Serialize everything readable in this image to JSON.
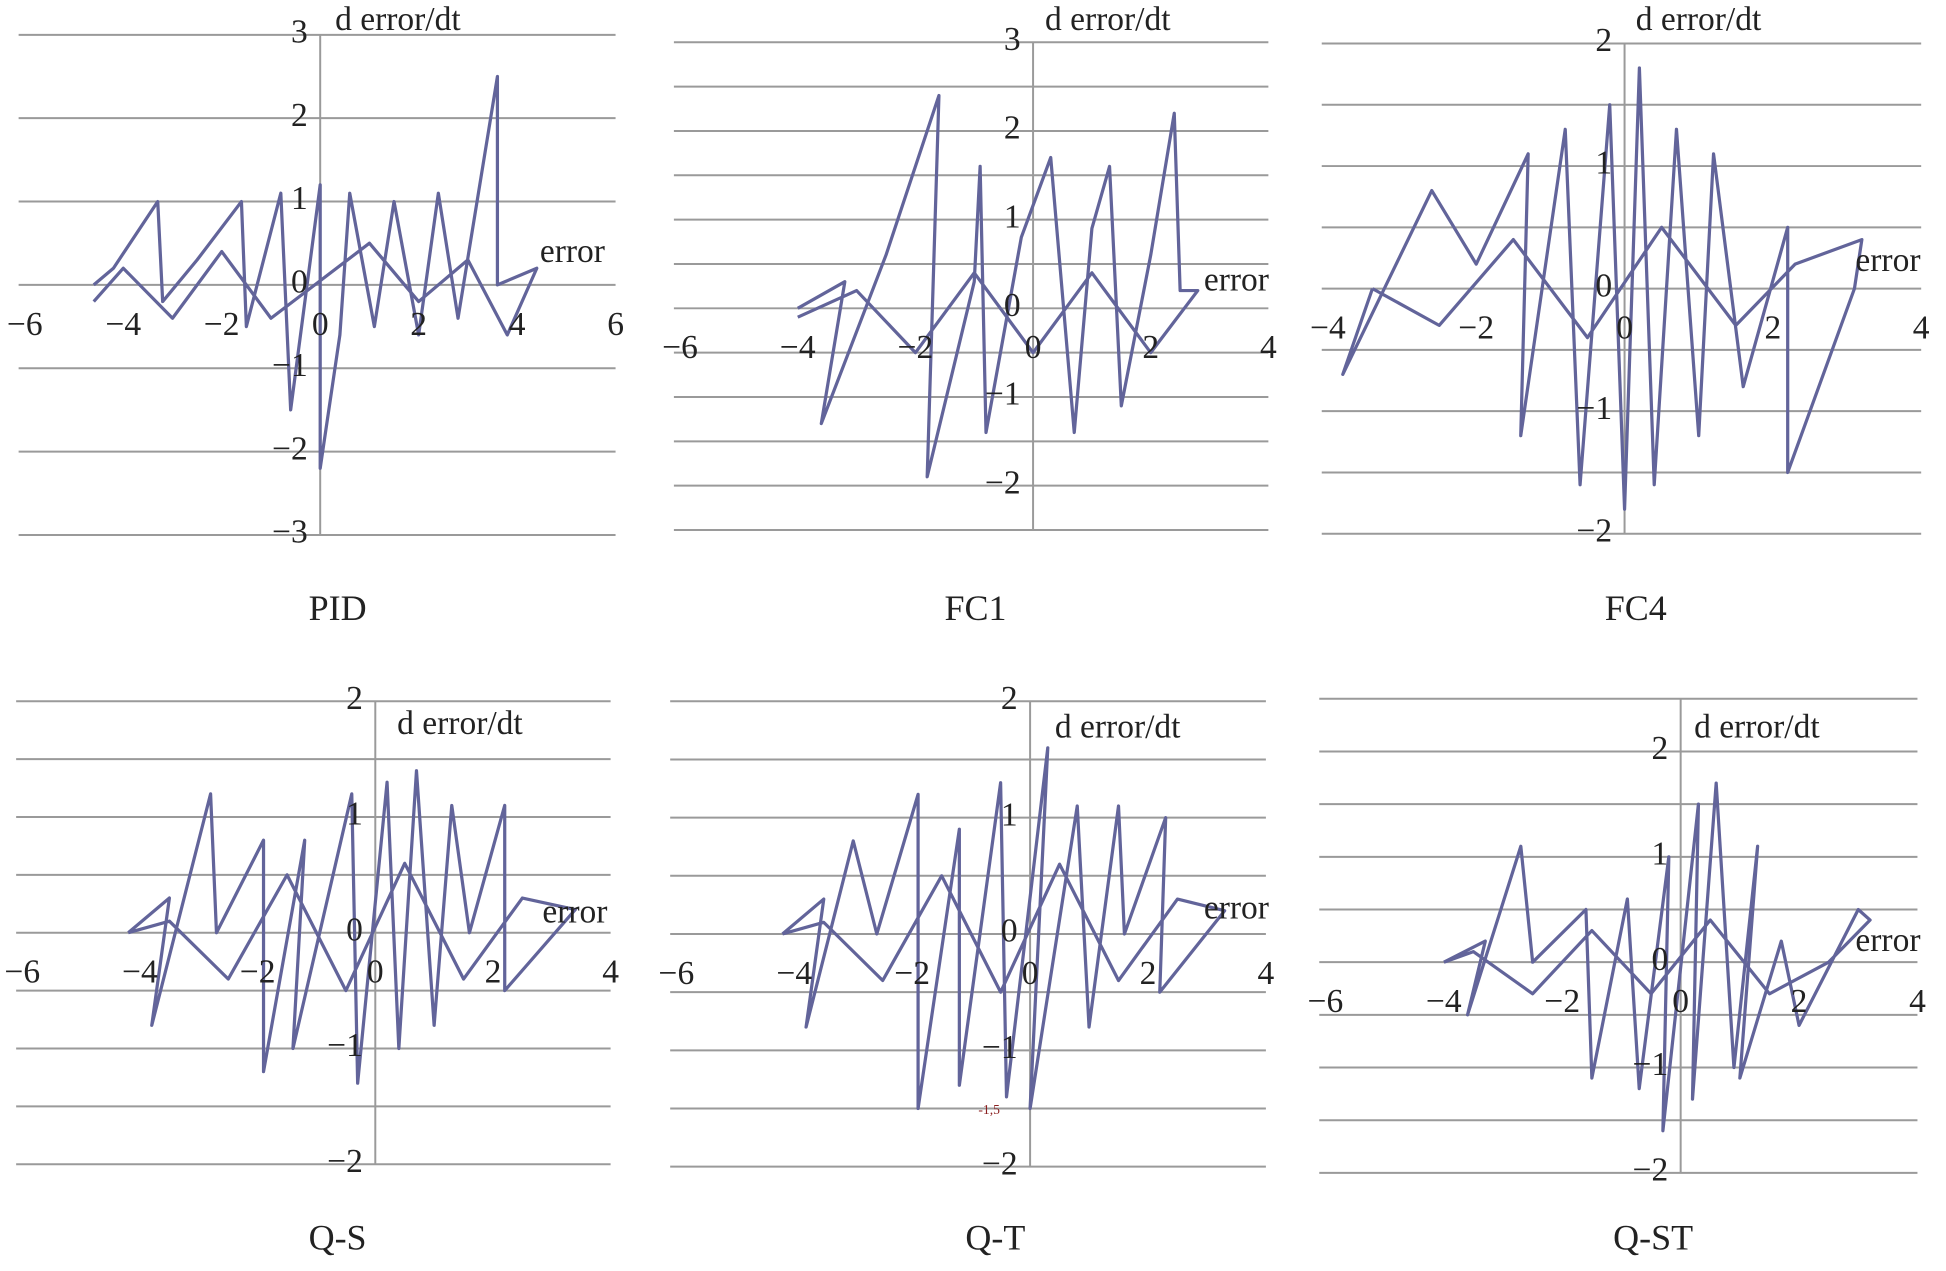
{
  "chart_data": [
    {
      "type": "line",
      "title": "PID",
      "x_label": "error",
      "y_label": "d error/dt",
      "xlim": [
        -6,
        6
      ],
      "ylim": [
        -3,
        3
      ],
      "xticks": [
        {
          "value": -6,
          "label": "−6"
        },
        {
          "value": -4,
          "label": "−4"
        },
        {
          "value": -2,
          "label": "−2"
        },
        0,
        2,
        4,
        6
      ],
      "yticks": [
        {
          "value": -3,
          "label": "−3"
        },
        {
          "value": -2,
          "label": "−2"
        },
        {
          "value": -1,
          "label": "−1"
        },
        0,
        1,
        2,
        3
      ],
      "ygrid": [
        -3,
        -2,
        -1,
        0,
        1,
        2,
        3
      ],
      "series": [
        {
          "color": "#62649a",
          "x": [
            -4.6,
            -4.2,
            -3.3,
            -3.2,
            -2.5,
            -1.6,
            -1.5,
            -0.8,
            -0.6,
            0,
            0,
            0.4,
            0.6,
            1.1,
            1.5,
            2.0,
            2.4,
            2.8,
            3.6,
            3.6,
            4.4,
            3.8,
            3,
            2,
            1,
            -1,
            -2,
            -3,
            -4,
            -4.6
          ],
          "values": [
            0,
            0.2,
            1.0,
            -0.2,
            0.3,
            1.0,
            -0.5,
            1.1,
            -1.5,
            1.2,
            -2.2,
            -0.6,
            1.1,
            -0.5,
            1.0,
            -0.6,
            1.1,
            -0.4,
            2.5,
            0,
            0.2,
            -0.6,
            0.3,
            -0.2,
            0.5,
            -0.4,
            0.4,
            -0.4,
            0.2,
            -0.2
          ]
        }
      ]
    },
    {
      "type": "line",
      "title": "FC1",
      "x_label": "error",
      "y_label": "d error/dt",
      "xlim": [
        -6,
        4
      ],
      "ylim": [
        -2.5,
        3
      ],
      "xticks": [
        {
          "value": -6,
          "label": "−6"
        },
        {
          "value": -4,
          "label": "−4"
        },
        {
          "value": -2,
          "label": "−2"
        },
        0,
        2,
        4
      ],
      "yticks": [
        {
          "value": -2,
          "label": "−2"
        },
        {
          "value": -1,
          "label": "−1"
        },
        0,
        1,
        2,
        3
      ],
      "ygrid": [
        -2.5,
        -2,
        -1.5,
        -1,
        -0.5,
        0,
        0.5,
        1,
        1.5,
        2,
        2.5,
        3
      ],
      "series": [
        {
          "color": "#62649a",
          "x": [
            -4,
            -3.2,
            -3.6,
            -2.5,
            -1.6,
            -1.8,
            -1.0,
            -0.9,
            -0.8,
            -0.2,
            0.3,
            0.7,
            1.0,
            1.3,
            1.5,
            2.0,
            2.4,
            2.5,
            2.8,
            2.0,
            1.0,
            0,
            -1,
            -2,
            -3,
            -4
          ],
          "values": [
            0,
            0.3,
            -1.3,
            0.6,
            2.4,
            -1.9,
            0.3,
            1.6,
            -1.4,
            0.8,
            1.7,
            -1.4,
            0.9,
            1.6,
            -1.1,
            0.6,
            2.2,
            0.2,
            0.2,
            -0.5,
            0.4,
            -0.5,
            0.4,
            -0.5,
            0.2,
            -0.1
          ]
        }
      ]
    },
    {
      "type": "line",
      "title": "FC4",
      "x_label": "error",
      "y_label": "d error/dt",
      "xlim": [
        -4,
        4
      ],
      "ylim": [
        -2,
        2
      ],
      "xticks": [
        {
          "value": -4,
          "label": "−4"
        },
        {
          "value": -2,
          "label": "−2"
        },
        0,
        2,
        4
      ],
      "yticks": [
        {
          "value": -2,
          "label": "−2"
        },
        {
          "value": -1,
          "label": "−1"
        },
        0,
        1,
        2
      ],
      "ygrid": [
        -2,
        -1.5,
        -1,
        -0.5,
        0,
        0.5,
        1,
        1.5,
        2
      ],
      "series": [
        {
          "color": "#62649a",
          "x": [
            -3.4,
            -3.8,
            -2.6,
            -2.0,
            -1.3,
            -1.4,
            -0.8,
            -0.6,
            -0.2,
            0.0,
            0.2,
            0.4,
            0.7,
            1.0,
            1.2,
            1.6,
            2.2,
            2.2,
            3.1,
            3.2,
            2.3,
            1.5,
            0.5,
            -0.5,
            -1.5,
            -2.5,
            -3.4
          ],
          "values": [
            0,
            -0.7,
            0.8,
            0.2,
            1.1,
            -1.2,
            1.3,
            -1.6,
            1.5,
            -1.8,
            1.8,
            -1.6,
            1.3,
            -1.2,
            1.1,
            -0.8,
            0.5,
            -1.5,
            0.0,
            0.4,
            0.2,
            -0.3,
            0.5,
            -0.4,
            0.4,
            -0.3,
            0
          ]
        }
      ]
    },
    {
      "type": "line",
      "title": "Q-S",
      "x_label": "error",
      "y_label": "d error/dt",
      "xlim": [
        -6,
        4
      ],
      "ylim": [
        -2,
        2
      ],
      "xticks": [
        {
          "value": -6,
          "label": "−6"
        },
        {
          "value": -4,
          "label": "−4"
        },
        {
          "value": -2,
          "label": "−2"
        },
        0,
        2,
        4
      ],
      "yticks": [
        {
          "value": -2,
          "label": "−2"
        },
        {
          "value": -1,
          "label": "−1"
        },
        0,
        1,
        2
      ],
      "ygrid": [
        -2,
        -1.5,
        -1,
        -0.5,
        0,
        0.5,
        1,
        1.5,
        2
      ],
      "series": [
        {
          "color": "#62649a",
          "x": [
            -4.2,
            -3.5,
            -3.8,
            -2.8,
            -2.7,
            -1.9,
            -1.9,
            -1.2,
            -1.4,
            -0.4,
            -0.3,
            0.2,
            0.4,
            0.7,
            1.0,
            1.3,
            1.6,
            2.2,
            2.2,
            3.4,
            2.5,
            1.5,
            0.5,
            -0.5,
            -1.5,
            -2.5,
            -3.5,
            -4.2
          ],
          "values": [
            0,
            0.3,
            -0.8,
            1.2,
            0,
            0.8,
            -1.2,
            0.8,
            -1.0,
            1.2,
            -1.3,
            1.3,
            -1.0,
            1.4,
            -0.8,
            1.1,
            0,
            1.1,
            -0.5,
            0.2,
            0.3,
            -0.4,
            0.6,
            -0.5,
            0.5,
            -0.4,
            0.1,
            0
          ]
        }
      ]
    },
    {
      "type": "line",
      "title": "Q-T",
      "x_label": "error",
      "y_label": "d error/dt",
      "annotations": [
        {
          "text": "-1,5"
        }
      ],
      "xlim": [
        -6,
        4
      ],
      "ylim": [
        -2,
        2
      ],
      "xticks": [
        {
          "value": -6,
          "label": "−6"
        },
        {
          "value": -4,
          "label": "−4"
        },
        {
          "value": -2,
          "label": "−2"
        },
        0,
        2,
        4
      ],
      "yticks": [
        {
          "value": -2,
          "label": "−2"
        },
        {
          "value": -1,
          "label": "−1"
        },
        0,
        1,
        2
      ],
      "ygrid": [
        -2,
        -1.5,
        -1,
        -0.5,
        0,
        0.5,
        1,
        1.5,
        2
      ],
      "series": [
        {
          "color": "#62649a",
          "x": [
            -4.2,
            -3.5,
            -3.8,
            -3.0,
            -2.6,
            -1.9,
            -1.9,
            -1.2,
            -1.2,
            -0.5,
            -0.4,
            0.3,
            0,
            0.8,
            1.0,
            1.5,
            1.6,
            2.3,
            2.2,
            3.3,
            2.5,
            1.5,
            0.5,
            -0.5,
            -1.5,
            -2.5,
            -3.5,
            -4.2
          ],
          "values": [
            0,
            0.3,
            -0.8,
            0.8,
            0,
            1.2,
            -1.5,
            0.9,
            -1.3,
            1.3,
            -1.4,
            1.6,
            -1.5,
            1.1,
            -0.8,
            1.1,
            0,
            1.0,
            -0.5,
            0.2,
            0.3,
            -0.4,
            0.6,
            -0.5,
            0.5,
            -0.4,
            0.1,
            0
          ]
        }
      ]
    },
    {
      "type": "line",
      "title": "Q-ST",
      "x_label": "error",
      "y_label": "d error/dt",
      "xlim": [
        -6,
        4
      ],
      "ylim": [
        -2,
        2.5
      ],
      "xticks": [
        {
          "value": -6,
          "label": "−6"
        },
        {
          "value": -4,
          "label": "−4"
        },
        {
          "value": -2,
          "label": "−2"
        },
        0,
        2,
        4
      ],
      "yticks": [
        {
          "value": -2,
          "label": "−2"
        },
        {
          "value": -1,
          "label": "−1"
        },
        0,
        1,
        2
      ],
      "ygrid": [
        -2,
        -1.5,
        -1,
        -0.5,
        0,
        0.5,
        1,
        1.5,
        2,
        2.5
      ],
      "series": [
        {
          "color": "#62649a",
          "x": [
            -4,
            -3.3,
            -3.6,
            -2.7,
            -2.5,
            -1.6,
            -1.5,
            -0.9,
            -0.7,
            -0.2,
            -0.3,
            0.3,
            0.2,
            0.6,
            0.9,
            1.3,
            1.0,
            1.7,
            2.0,
            3.0,
            3.2,
            2.5,
            1.5,
            0.5,
            -0.5,
            -1.5,
            -2.5,
            -3.5,
            -4
          ],
          "values": [
            0,
            0.2,
            -0.5,
            1.1,
            0,
            0.5,
            -1.1,
            0.6,
            -1.2,
            1.0,
            -1.6,
            1.5,
            -1.3,
            1.7,
            -1.0,
            1.1,
            -1.1,
            0.2,
            -0.6,
            0.5,
            0.4,
            0,
            -0.3,
            0.4,
            -0.3,
            0.3,
            -0.3,
            0.1,
            0
          ]
        }
      ]
    }
  ]
}
